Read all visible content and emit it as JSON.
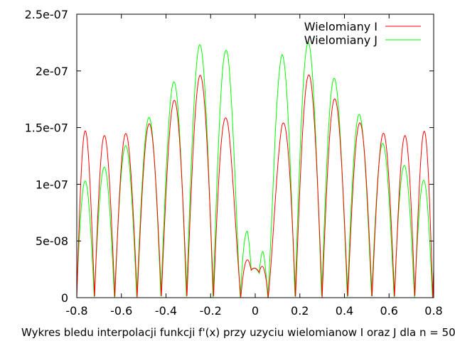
{
  "chart_data": {
    "type": "line",
    "title": "",
    "xlabel": "Wykres bledu interpolacji funkcji f'(x) przy uzyciu wielomianow I oraz J dla n = 50",
    "ylabel": "",
    "xlim": [
      -0.8,
      0.8
    ],
    "ylim": [
      0,
      2.5e-07
    ],
    "x_ticks": [
      -0.8,
      -0.6,
      -0.4,
      -0.2,
      0,
      0.2,
      0.4,
      0.6,
      0.8
    ],
    "x_tick_labels": [
      "-0.8",
      "-0.6",
      "-0.4",
      "-0.2",
      "0",
      "0.2",
      "0.4",
      "0.6",
      "0.8"
    ],
    "y_ticks": [
      0,
      5e-08,
      1e-07,
      1.5e-07,
      2e-07,
      2.5e-07
    ],
    "y_tick_labels": [
      "0",
      "5e-08",
      "1e-07",
      "1.5e-07",
      "2e-07",
      "2.5e-07"
    ],
    "grid": false,
    "legend_position": "top-right",
    "series": [
      {
        "name": "Wielomiany I",
        "color": "#ff0000",
        "envelope": {
          "x": [
            0,
            0.018,
            0.05,
            0.085,
            0.12,
            0.16,
            0.19,
            0.21,
            0.25,
            0.3,
            0.35,
            0.4,
            0.45,
            0.5,
            0.55,
            0.6,
            0.65,
            0.7,
            0.74,
            0.77,
            0.79,
            0.8
          ],
          "y": [
            2.6e-08,
            2.6e-08,
            6.8e-08,
            1.13e-07,
            1.52e-07,
            1.8e-07,
            1.96e-07,
            1.98e-07,
            1.96e-07,
            1.88e-07,
            1.77e-07,
            1.66e-07,
            1.57e-07,
            1.5e-07,
            1.46e-07,
            1.44e-07,
            1.43e-07,
            1.43e-07,
            1.45e-07,
            1.48e-07,
            1.5e-07,
            1.5e-07
          ]
        }
      },
      {
        "name": "Wielomiany J",
        "color": "#00ff00",
        "envelope": {
          "x": [
            0,
            0.018,
            0.035,
            0.06,
            0.09,
            0.12,
            0.15,
            0.18,
            0.21,
            0.25,
            0.3,
            0.35,
            0.4,
            0.45,
            0.5,
            0.55,
            0.6,
            0.65,
            0.7,
            0.75,
            0.8
          ],
          "y": [
            2.6e-08,
            2.6e-08,
            8e-08,
            1.3e-07,
            1.9e-07,
            2.15e-07,
            2.25e-07,
            2.29e-07,
            2.29e-07,
            2.23e-07,
            2.1e-07,
            1.95e-07,
            1.8e-07,
            1.66e-07,
            1.53e-07,
            1.41e-07,
            1.3e-07,
            1.2e-07,
            1.11e-07,
            1.04e-07,
            1e-07
          ]
        }
      }
    ]
  }
}
